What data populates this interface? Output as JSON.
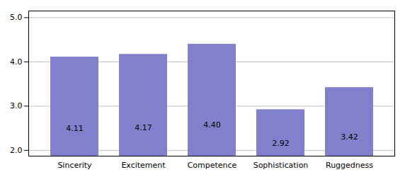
{
  "chart_data": {
    "type": "bar",
    "categories": [
      "Sincerity",
      "Excitement",
      "Competence",
      "Sophistication",
      "Ruggedness"
    ],
    "values": [
      4.11,
      4.17,
      4.4,
      2.92,
      3.42
    ],
    "value_labels": [
      "4.11",
      "4.17",
      "4.40",
      "2.92",
      "3.42"
    ],
    "data_labels": true,
    "color": "#8080cc",
    "ylim": [
      1.87,
      5.15
    ],
    "yticks": [
      2,
      3,
      4,
      5
    ],
    "grid": true
  }
}
